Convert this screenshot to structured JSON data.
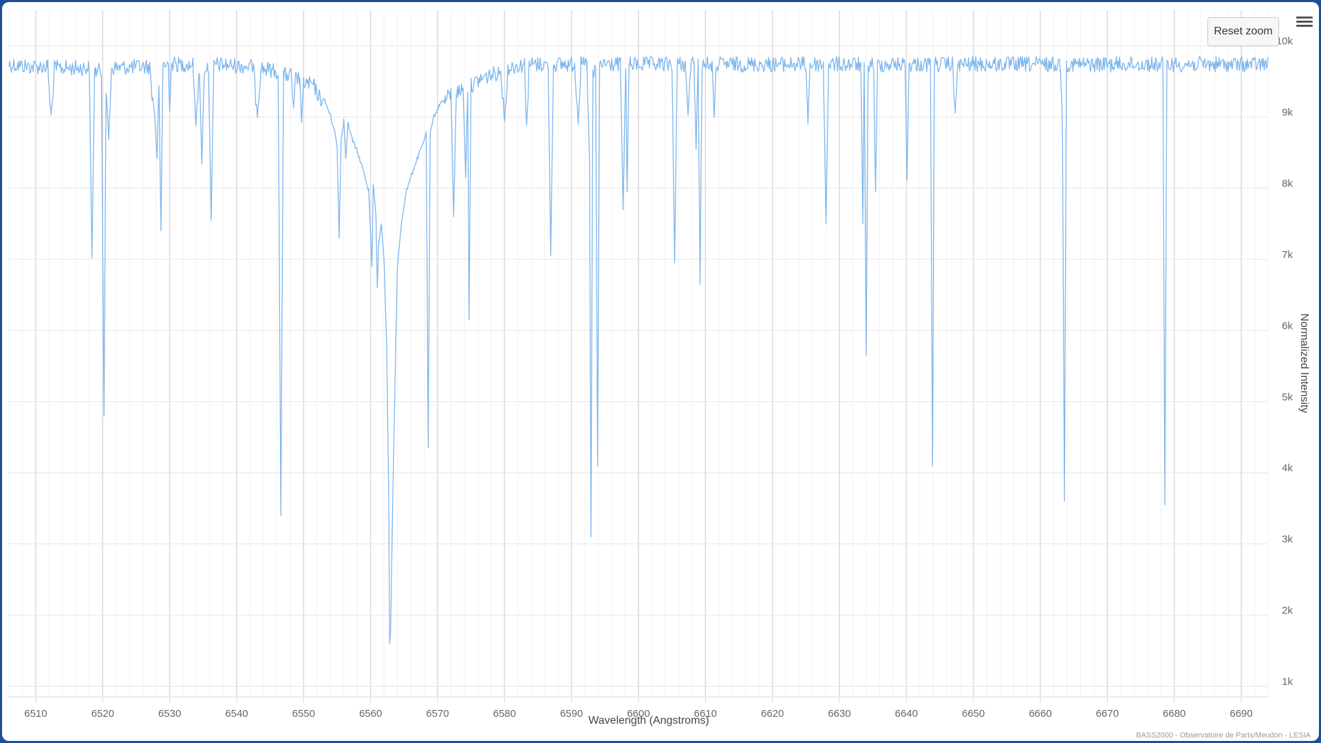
{
  "colors": {
    "series": "#7cb5ec",
    "grid": "#e6e6e6",
    "label": "#666666",
    "frame": "#1f4e96"
  },
  "toolbar": {
    "reset_zoom_label": "Reset zoom",
    "menu_icon": "hamburger-menu-icon"
  },
  "credits": "BASS2000 - Observatoire de Paris/Meudon - LESIA",
  "chart_data": {
    "type": "line",
    "title": "",
    "xlabel": "Wavelength (Angstroms)",
    "ylabel": "Normalized Intensity",
    "xlim": [
      6506,
      6694
    ],
    "ylim": [
      850,
      10500
    ],
    "x_ticks": [
      6510,
      6520,
      6530,
      6540,
      6550,
      6560,
      6570,
      6580,
      6590,
      6600,
      6610,
      6620,
      6630,
      6640,
      6650,
      6660,
      6670,
      6680,
      6690
    ],
    "x_tick_labels": [
      "6510",
      "6520",
      "6530",
      "6540",
      "6550",
      "6560",
      "6570",
      "6580",
      "6590",
      "6600",
      "6610",
      "6620",
      "6630",
      "6640",
      "6650",
      "6660",
      "6670",
      "6680",
      "6690"
    ],
    "y_ticks": [
      1000,
      2000,
      3000,
      4000,
      5000,
      6000,
      7000,
      8000,
      9000,
      10000
    ],
    "y_tick_labels": [
      "1k",
      "2k",
      "3k",
      "4k",
      "5k",
      "6k",
      "7k",
      "8k",
      "9k",
      "10k"
    ],
    "grid": true,
    "legend": "none",
    "continuum": 9850,
    "series": [
      {
        "line_width": 1.3,
        "points": [
          [
            6506.0,
            9850
          ],
          [
            6509.0,
            9820
          ],
          [
            6511.8,
            9820
          ],
          [
            6512.3,
            9050
          ],
          [
            6512.8,
            9800
          ],
          [
            6518.0,
            9800
          ],
          [
            6518.4,
            7020
          ],
          [
            6518.8,
            9750
          ],
          [
            6519.8,
            9760
          ],
          [
            6520.2,
            4800
          ],
          [
            6520.5,
            9500
          ],
          [
            6520.9,
            8700
          ],
          [
            6521.3,
            9800
          ],
          [
            6527.0,
            9820
          ],
          [
            6527.8,
            9000
          ],
          [
            6528.1,
            8450
          ],
          [
            6528.4,
            9500
          ],
          [
            6528.7,
            7400
          ],
          [
            6529.0,
            9850
          ],
          [
            6529.8,
            9850
          ],
          [
            6530.0,
            9100
          ],
          [
            6530.2,
            9850
          ],
          [
            6533.5,
            9850
          ],
          [
            6533.9,
            8900
          ],
          [
            6534.4,
            9800
          ],
          [
            6534.8,
            8400
          ],
          [
            6535.2,
            9800
          ],
          [
            6535.8,
            9800
          ],
          [
            6536.2,
            7550
          ],
          [
            6536.6,
            9850
          ],
          [
            6542.5,
            9820
          ],
          [
            6543.1,
            9050
          ],
          [
            6543.6,
            9800
          ],
          [
            6546.2,
            9750
          ],
          [
            6546.6,
            3400
          ],
          [
            6547.0,
            9700
          ],
          [
            6548.2,
            9700
          ],
          [
            6548.5,
            9150
          ],
          [
            6548.8,
            9650
          ],
          [
            6549.4,
            9650
          ],
          [
            6549.7,
            8950
          ],
          [
            6550.0,
            9600
          ],
          [
            6551.5,
            9550
          ],
          [
            6552.3,
            9400
          ],
          [
            6553.2,
            9250
          ],
          [
            6554.0,
            9050
          ],
          [
            6554.6,
            8850
          ],
          [
            6555.0,
            8600
          ],
          [
            6555.3,
            7300
          ],
          [
            6555.6,
            8700
          ],
          [
            6556.0,
            9000
          ],
          [
            6556.3,
            8450
          ],
          [
            6556.6,
            8950
          ],
          [
            6557.3,
            8700
          ],
          [
            6558.0,
            8550
          ],
          [
            6559.0,
            8250
          ],
          [
            6559.7,
            8000
          ],
          [
            6560.2,
            6900
          ],
          [
            6560.4,
            8100
          ],
          [
            6560.8,
            7600
          ],
          [
            6561.0,
            6600
          ],
          [
            6561.2,
            7200
          ],
          [
            6561.6,
            7500
          ],
          [
            6562.0,
            7000
          ],
          [
            6562.4,
            5800
          ],
          [
            6562.7,
            3700
          ],
          [
            6562.85,
            1600
          ],
          [
            6563.0,
            1800
          ],
          [
            6563.3,
            3600
          ],
          [
            6563.8,
            6000
          ],
          [
            6564.0,
            6900
          ],
          [
            6564.6,
            7500
          ],
          [
            6565.4,
            8000
          ],
          [
            6566.4,
            8300
          ],
          [
            6567.6,
            8600
          ],
          [
            6568.3,
            8800
          ],
          [
            6568.6,
            4350
          ],
          [
            6568.9,
            8800
          ],
          [
            6569.5,
            9050
          ],
          [
            6570.3,
            9200
          ],
          [
            6571.2,
            9350
          ],
          [
            6572.0,
            9450
          ],
          [
            6572.4,
            7600
          ],
          [
            6572.8,
            9450
          ],
          [
            6573.8,
            9500
          ],
          [
            6574.2,
            8200
          ],
          [
            6574.5,
            9500
          ],
          [
            6574.7,
            6150
          ],
          [
            6575.0,
            9550
          ],
          [
            6576.5,
            9650
          ],
          [
            6578.0,
            9700
          ],
          [
            6579.5,
            9750
          ],
          [
            6580.0,
            8950
          ],
          [
            6580.5,
            9800
          ],
          [
            6583.0,
            9850
          ],
          [
            6583.3,
            8900
          ],
          [
            6583.7,
            9850
          ],
          [
            6586.5,
            9850
          ],
          [
            6586.9,
            7050
          ],
          [
            6587.3,
            9850
          ],
          [
            6590.5,
            9850
          ],
          [
            6591.0,
            8950
          ],
          [
            6591.4,
            9850
          ],
          [
            6592.3,
            9850
          ],
          [
            6592.7,
            8350
          ],
          [
            6592.9,
            3100
          ],
          [
            6593.2,
            9700
          ],
          [
            6593.6,
            9750
          ],
          [
            6593.9,
            4100
          ],
          [
            6594.2,
            9850
          ],
          [
            6597.3,
            9850
          ],
          [
            6597.7,
            7700
          ],
          [
            6598.1,
            9850
          ],
          [
            6598.3,
            7950
          ],
          [
            6598.6,
            9850
          ],
          [
            6605.0,
            9850
          ],
          [
            6605.4,
            6950
          ],
          [
            6605.8,
            9850
          ],
          [
            6607.0,
            9850
          ],
          [
            6607.4,
            9050
          ],
          [
            6607.8,
            9850
          ],
          [
            6608.3,
            9850
          ],
          [
            6608.6,
            8600
          ],
          [
            6608.9,
            9850
          ],
          [
            6609.2,
            6650
          ],
          [
            6609.5,
            9850
          ],
          [
            6611.0,
            9850
          ],
          [
            6611.3,
            9000
          ],
          [
            6611.6,
            9850
          ],
          [
            6625.0,
            9850
          ],
          [
            6625.3,
            8950
          ],
          [
            6625.6,
            9850
          ],
          [
            6627.6,
            9850
          ],
          [
            6628.0,
            7500
          ],
          [
            6628.4,
            9850
          ],
          [
            6633.2,
            9850
          ],
          [
            6633.5,
            7500
          ],
          [
            6633.7,
            9850
          ],
          [
            6634.0,
            5650
          ],
          [
            6634.3,
            9850
          ],
          [
            6635.1,
            9850
          ],
          [
            6635.4,
            7950
          ],
          [
            6635.7,
            9850
          ],
          [
            6639.8,
            9850
          ],
          [
            6640.1,
            8150
          ],
          [
            6640.4,
            9850
          ],
          [
            6643.6,
            9850
          ],
          [
            6643.9,
            4100
          ],
          [
            6644.2,
            9850
          ],
          [
            6646.9,
            9850
          ],
          [
            6647.3,
            9100
          ],
          [
            6647.7,
            9850
          ],
          [
            6663.0,
            9850
          ],
          [
            6663.3,
            8950
          ],
          [
            6663.6,
            3600
          ],
          [
            6663.9,
            9850
          ],
          [
            6678.3,
            9850
          ],
          [
            6678.6,
            3550
          ],
          [
            6678.9,
            9850
          ],
          [
            6694.0,
            9850
          ]
        ]
      }
    ]
  }
}
